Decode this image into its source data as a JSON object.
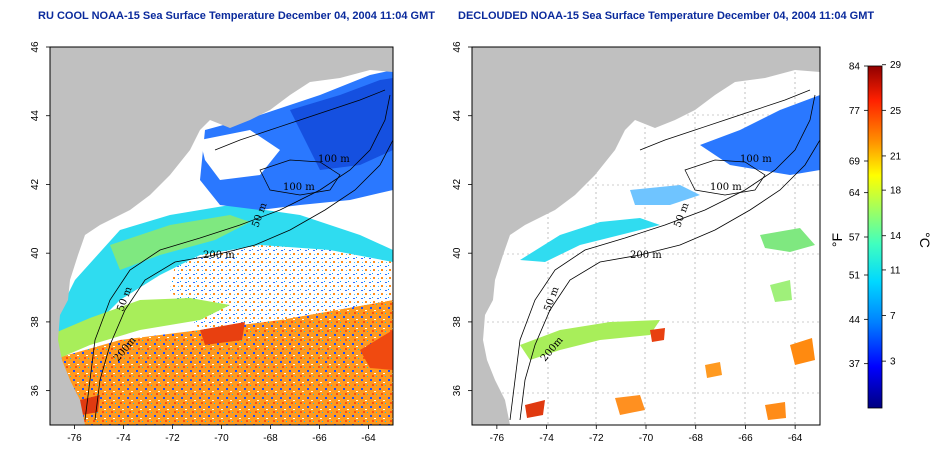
{
  "left_panel": {
    "title": "RU COOL NOAA-15 Sea Surface Temperature December 04, 2004 11:04 GMT",
    "contour_labels": [
      "100 m",
      "100 m",
      "50 m",
      "200 m",
      "50 m",
      "200m"
    ]
  },
  "right_panel": {
    "title": "DECLOUDED NOAA-15 Sea Surface Temperature December 04, 2004 11:04 GMT",
    "contour_labels": [
      "100 m",
      "100 m",
      "50 m",
      "200 m",
      "50 m",
      "200m"
    ]
  },
  "axes": {
    "x_ticks": [
      "-76",
      "-74",
      "-72",
      "-70",
      "-68",
      "-66",
      "-64"
    ],
    "y_ticks": [
      "46",
      "44",
      "42",
      "40",
      "38",
      "36"
    ]
  },
  "colorbar": {
    "fahrenheit_ticks": [
      "84",
      "77",
      "69",
      "64",
      "57",
      "51",
      "44",
      "37"
    ],
    "celsius_ticks": [
      "29",
      "25",
      "21",
      "18",
      "14",
      "11",
      "7",
      "3"
    ],
    "fahrenheit_unit": "°F",
    "celsius_unit": "°C",
    "colors": [
      "#000080",
      "#0000ff",
      "#0080ff",
      "#00d8ff",
      "#40ffbf",
      "#a0ff60",
      "#ffff00",
      "#ff9000",
      "#ff2000",
      "#900000"
    ]
  },
  "colors": {
    "land": "#c0c0c0",
    "title": "#0a2a9c"
  }
}
